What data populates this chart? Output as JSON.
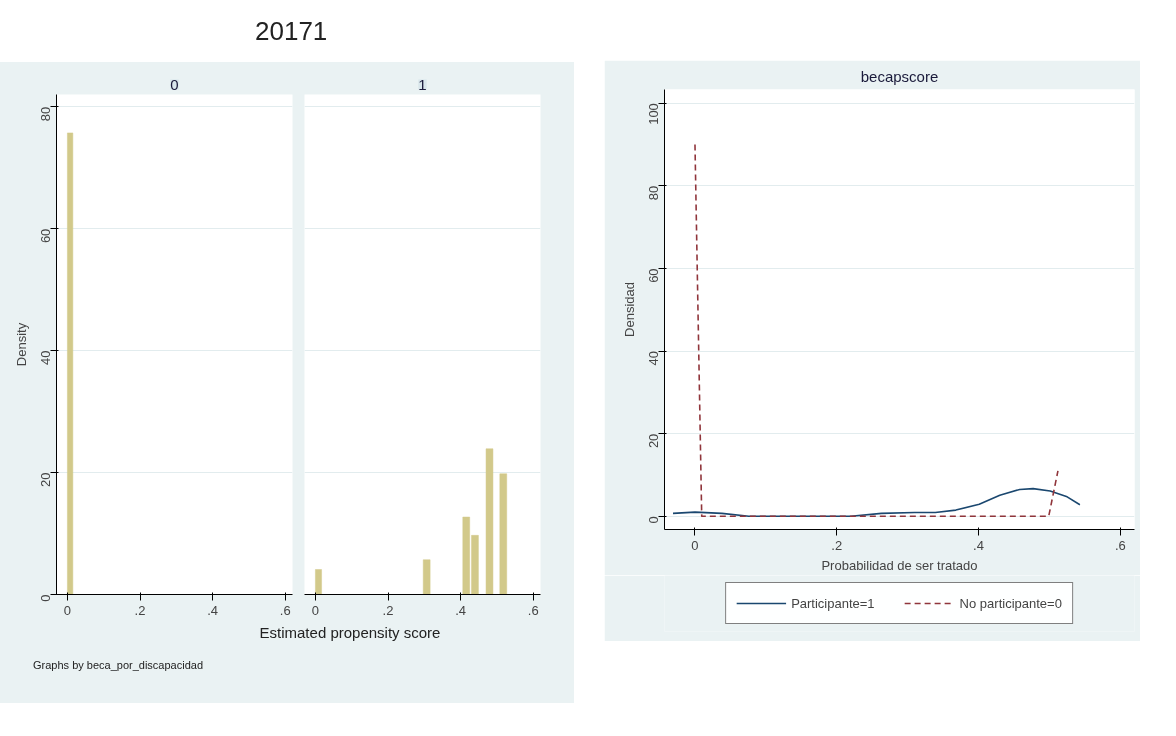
{
  "chart_data": [
    {
      "type": "histogram",
      "title": "0",
      "annotations": [
        "20171",
        "Graphs by beca_por_discapacidad"
      ],
      "xlabel": "Estimated propensity score",
      "ylabel": "Density",
      "color": "#d2c98a",
      "bins": [
        0,
        0.015
      ],
      "values": [
        75.7
      ],
      "xlim": [
        -0.03,
        0.62
      ],
      "ylim": [
        0,
        82
      ],
      "xticks": [
        0,
        {
          "value": 0.2,
          "label": ".2"
        },
        {
          "value": 0.4,
          "label": ".4"
        },
        {
          "value": 0.6,
          "label": ".6"
        }
      ],
      "yticks": [
        0,
        20,
        40,
        60,
        80
      ],
      "grid": "y"
    },
    {
      "type": "histogram",
      "title": "1",
      "color": "#d2c98a",
      "bins": [
        0,
        0.017,
        0.297,
        0.316,
        0.406,
        0.425,
        0.43,
        0.449,
        0.47,
        0.489,
        0.508,
        0.527
      ],
      "values": [
        4.1,
        0,
        5.7,
        0,
        12.7,
        0,
        9.7,
        0,
        23.9,
        0,
        19.8
      ],
      "xlim": [
        -0.03,
        0.62
      ],
      "ylim": [
        0,
        82
      ],
      "xticks": [
        0,
        {
          "value": 0.2,
          "label": ".2"
        },
        {
          "value": 0.4,
          "label": ".4"
        },
        {
          "value": 0.6,
          "label": ".6"
        }
      ],
      "yticks": [
        0,
        20,
        40,
        60,
        80
      ],
      "grid": "y",
      "tick_labels": "x"
    },
    {
      "type": "line",
      "title": "becapscore",
      "xlabel": "Probabilidad de ser tratado",
      "ylabel": "Densidad",
      "legend": "bottom",
      "grid": "y",
      "xlim": [
        -0.043,
        0.62
      ],
      "ylim": [
        -3.2,
        103.3
      ],
      "xticks": [
        0,
        {
          "value": 0.2,
          "label": ".2"
        },
        {
          "value": 0.4,
          "label": ".4"
        },
        {
          "value": 0.6,
          "label": ".6"
        }
      ],
      "yticks": [
        0,
        20,
        40,
        60,
        80,
        100
      ],
      "series": [
        {
          "name": "Participante=1",
          "color": "#1a476f",
          "line_style": "solid",
          "x": [
            -0.031,
            0,
            0.038,
            0.076,
            0.22,
            0.263,
            0.31,
            0.339,
            0.368,
            0.401,
            0.43,
            0.458,
            0.477,
            0.501,
            0.525,
            0.543
          ],
          "values": [
            0.7,
            1,
            0.7,
            0,
            0,
            0.7,
            0.9,
            0.9,
            1.5,
            2.9,
            5.1,
            6.5,
            6.7,
            6.1,
            4.7,
            2.8
          ]
        },
        {
          "name": "No participante=0",
          "color": "#90353b",
          "line_style": "dashed",
          "x": [
            0,
            0.0095,
            0.499,
            0.512
          ],
          "values": [
            90,
            0,
            0,
            11
          ]
        }
      ]
    }
  ]
}
